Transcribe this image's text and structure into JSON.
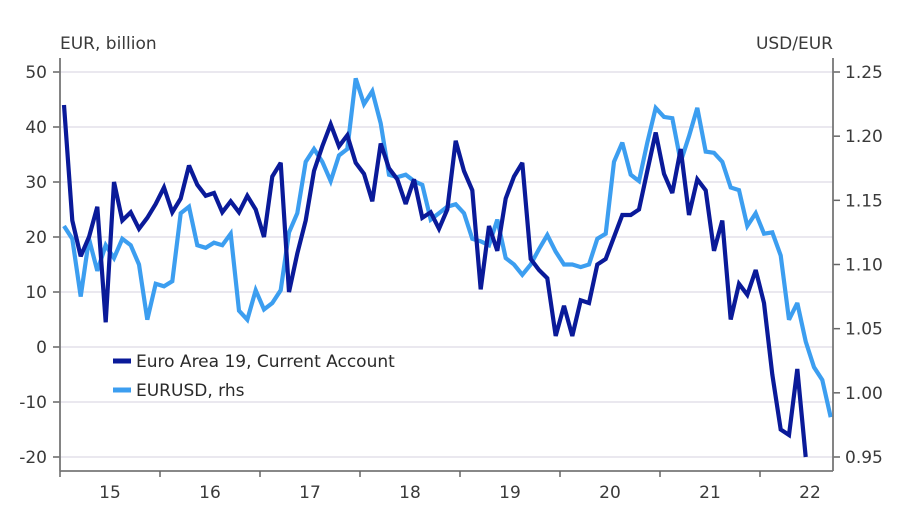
{
  "chart_data": {
    "type": "line",
    "title": "",
    "ylabel_left": "EUR, billion",
    "ylabel_right": "USD/EUR",
    "xlabel": "",
    "x_tick_labels": [
      "15",
      "16",
      "17",
      "18",
      "19",
      "20",
      "21",
      "22"
    ],
    "x_start": "2015-01",
    "frequency": "monthly",
    "ylim_left": [
      -20,
      50
    ],
    "yticks_left": [
      -20,
      -10,
      0,
      10,
      20,
      30,
      40,
      50
    ],
    "yticks_left_labels": [
      "-20",
      "-10",
      "0",
      "10",
      "20",
      "30",
      "40",
      "50"
    ],
    "ylim_right": [
      0.95,
      1.25
    ],
    "yticks_right": [
      0.95,
      1.0,
      1.05,
      1.1,
      1.15,
      1.2,
      1.25
    ],
    "yticks_right_labels": [
      "0.95",
      "1.00",
      "1.05",
      "1.10",
      "1.15",
      "1.20",
      "1.25"
    ],
    "grid": true,
    "legend_position": "lower-left",
    "series": [
      {
        "name": "Euro Area 19, Current Account",
        "axis": "left",
        "color": "#0a1a99",
        "values": [
          44,
          23,
          16.5,
          20,
          25.5,
          4.5,
          30,
          23,
          24.5,
          21.5,
          23.5,
          26,
          29,
          24.5,
          27,
          33,
          29.5,
          27.5,
          28,
          24.5,
          26.5,
          24.5,
          27.5,
          25,
          20,
          31,
          33.5,
          10,
          17,
          23,
          32,
          36.5,
          40.5,
          36.5,
          38.5,
          33.5,
          31.5,
          26.5,
          37,
          32.5,
          30.5,
          26,
          30.5,
          23.5,
          24.5,
          21.5,
          25,
          37.5,
          32,
          28.5,
          10.5,
          22,
          17.5,
          27,
          31,
          33.5,
          16,
          14,
          12.5,
          2,
          7.5,
          2,
          8.5,
          8,
          15,
          16,
          20,
          24,
          24,
          25,
          32,
          39,
          31.5,
          28,
          36,
          24,
          30.5,
          28.5,
          17.5,
          23,
          5,
          11.5,
          9.5,
          14,
          8,
          -5,
          -15,
          -16,
          -4,
          -20
        ]
      },
      {
        "name": "EURUSD, rhs",
        "axis": "right",
        "color": "#3c9ef0",
        "values": [
          1.13,
          1.12,
          1.075,
          1.12,
          1.095,
          1.115,
          1.105,
          1.12,
          1.115,
          1.1,
          1.057,
          1.085,
          1.083,
          1.087,
          1.14,
          1.145,
          1.115,
          1.113,
          1.117,
          1.115,
          1.124,
          1.064,
          1.057,
          1.08,
          1.065,
          1.07,
          1.08,
          1.125,
          1.14,
          1.18,
          1.19,
          1.18,
          1.165,
          1.185,
          1.19,
          1.245,
          1.225,
          1.235,
          1.21,
          1.17,
          1.168,
          1.17,
          1.165,
          1.162,
          1.135,
          1.14,
          1.145,
          1.147,
          1.14,
          1.12,
          1.118,
          1.115,
          1.135,
          1.105,
          1.1,
          1.092,
          1.1,
          1.112,
          1.123,
          1.11,
          1.1,
          1.1,
          1.098,
          1.1,
          1.12,
          1.124,
          1.18,
          1.195,
          1.17,
          1.165,
          1.195,
          1.222,
          1.215,
          1.214,
          1.18,
          1.2,
          1.222,
          1.188,
          1.187,
          1.18,
          1.16,
          1.158,
          1.13,
          1.14,
          1.124,
          1.125,
          1.107,
          1.057,
          1.07,
          1.04,
          1.02,
          1.01,
          0.981
        ]
      }
    ]
  }
}
